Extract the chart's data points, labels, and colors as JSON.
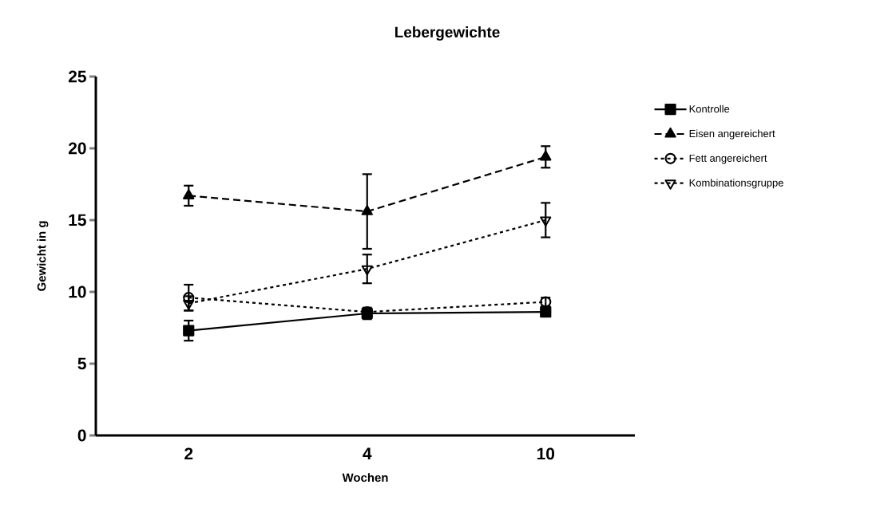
{
  "chart_data": {
    "type": "line",
    "title": "Lebergewichte",
    "xlabel": "Wochen",
    "ylabel": "Gewicht in g",
    "categories": [
      "2",
      "4",
      "10"
    ],
    "series": [
      {
        "name": "Kontrolle",
        "color": "#000000",
        "values": [
          7.3,
          8.5,
          8.6
        ],
        "errors": [
          0.7,
          0.4,
          0.3
        ],
        "marker": "square",
        "line_style": "solid"
      },
      {
        "name": "Eisen angereichert",
        "color": "#000000",
        "values": [
          16.7,
          15.6,
          19.4
        ],
        "errors": [
          0.7,
          2.6,
          0.75
        ],
        "marker": "triangle",
        "line_style": "dashed"
      },
      {
        "name": "Fett angereichert",
        "color": "#000000",
        "values": [
          9.6,
          8.6,
          9.3
        ],
        "errors": [
          0.9,
          null,
          0.3
        ],
        "marker": "circle",
        "line_style": "dotted"
      },
      {
        "name": "Kombinationsgruppe",
        "color": "#000000",
        "values": [
          9.2,
          11.6,
          15.0
        ],
        "errors": [
          0.5,
          1.0,
          1.2
        ],
        "marker": "triangle-down",
        "line_style": "dotted"
      }
    ],
    "ylim": [
      0,
      25
    ],
    "yticks": [
      0,
      5,
      10,
      15,
      20,
      25
    ],
    "legend": "right",
    "grid": false
  }
}
